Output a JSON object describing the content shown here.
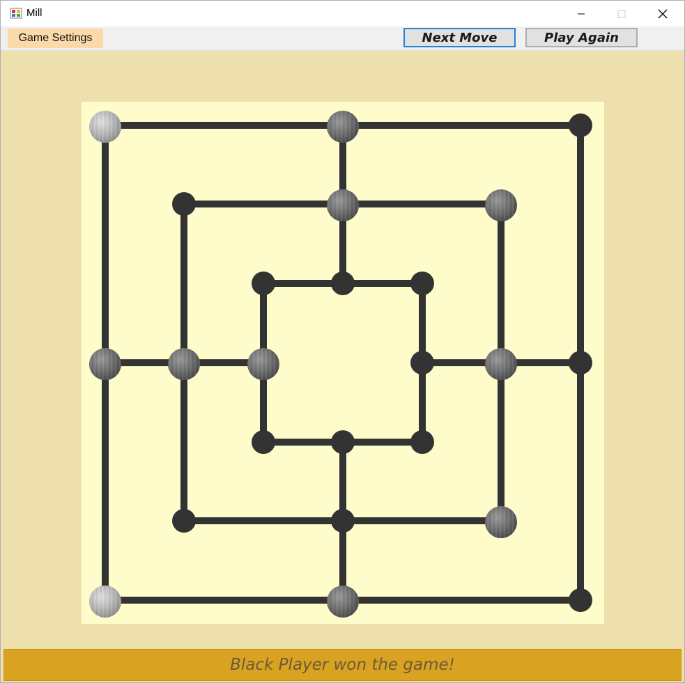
{
  "window": {
    "title": "Mill"
  },
  "menu": {
    "game_settings": "Game Settings"
  },
  "toolbar": {
    "next_move": "Next Move",
    "play_again": "Play Again"
  },
  "status": {
    "message": "Black Player won the game!"
  },
  "colors": {
    "background": "#eee0ac",
    "board": "#fefcca",
    "line": "#333333",
    "status_bar": "#d9a321",
    "focus_border": "#2b7fd4"
  },
  "board": {
    "points": [
      {
        "id": "a7",
        "piece": "white"
      },
      {
        "id": "d7",
        "piece": "black"
      },
      {
        "id": "g7",
        "piece": null
      },
      {
        "id": "b6",
        "piece": null
      },
      {
        "id": "d6",
        "piece": "black"
      },
      {
        "id": "f6",
        "piece": "black"
      },
      {
        "id": "c5",
        "piece": null
      },
      {
        "id": "d5",
        "piece": null
      },
      {
        "id": "e5",
        "piece": null
      },
      {
        "id": "a4",
        "piece": "black"
      },
      {
        "id": "b4",
        "piece": "black"
      },
      {
        "id": "c4",
        "piece": "black"
      },
      {
        "id": "e4",
        "piece": null
      },
      {
        "id": "f4",
        "piece": "black"
      },
      {
        "id": "g4",
        "piece": null
      },
      {
        "id": "c3",
        "piece": null
      },
      {
        "id": "d3",
        "piece": null
      },
      {
        "id": "e3",
        "piece": null
      },
      {
        "id": "b2",
        "piece": null
      },
      {
        "id": "d2",
        "piece": null
      },
      {
        "id": "f2",
        "piece": "black"
      },
      {
        "id": "a1",
        "piece": "white"
      },
      {
        "id": "d1",
        "piece": "black"
      },
      {
        "id": "g1",
        "piece": null
      }
    ]
  }
}
